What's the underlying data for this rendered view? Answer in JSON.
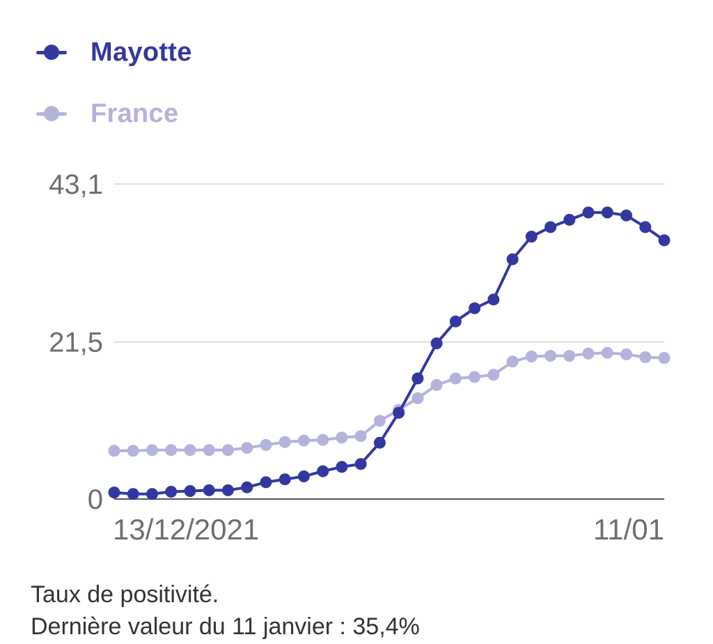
{
  "chart_data": {
    "type": "line",
    "x_start_label": "13/12/2021",
    "x_end_label": "11/01",
    "yticks": [
      {
        "value": 0,
        "label": "0"
      },
      {
        "value": 21.5,
        "label": "21,5"
      },
      {
        "value": 43.1,
        "label": "43,1"
      }
    ],
    "ylim": [
      0,
      43.1
    ],
    "grid": true,
    "legend_position": "top-left",
    "series": [
      {
        "name": "Mayotte",
        "color": "#3338a0",
        "values": [
          0.9,
          0.7,
          0.7,
          1.0,
          1.1,
          1.2,
          1.2,
          1.6,
          2.3,
          2.7,
          3.1,
          3.8,
          4.4,
          4.8,
          7.7,
          11.8,
          16.5,
          21.3,
          24.3,
          26.1,
          27.3,
          32.8,
          35.9,
          37.2,
          38.2,
          39.2,
          39.2,
          38.8,
          37.2,
          35.4
        ]
      },
      {
        "name": "France",
        "color": "#b3b3dc",
        "values": [
          6.6,
          6.6,
          6.7,
          6.7,
          6.7,
          6.7,
          6.7,
          7.0,
          7.4,
          7.8,
          8.0,
          8.1,
          8.4,
          8.6,
          10.7,
          12.2,
          13.8,
          15.6,
          16.5,
          16.7,
          17.0,
          18.8,
          19.5,
          19.6,
          19.6,
          19.9,
          20.0,
          19.8,
          19.4,
          19.3
        ]
      }
    ]
  },
  "caption": {
    "line1": "Taux de positivité.",
    "line2": "Dernière valeur du 11 janvier : 35,4%"
  }
}
